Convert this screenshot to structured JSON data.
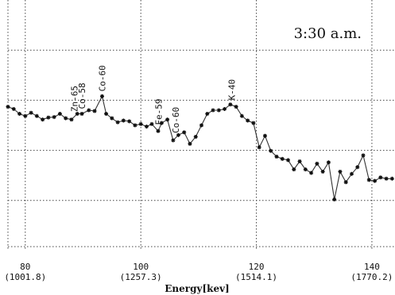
{
  "chart_data": {
    "type": "line",
    "time_label": "3:30 a.m.",
    "xlabel": "Energy[kev]",
    "ylabel": "",
    "xlim": [
      77,
      144
    ],
    "ylim": [
      0,
      100
    ],
    "grid": true,
    "x_ticks": [
      {
        "value": 80,
        "top": "80",
        "bottom": "(1001.8)"
      },
      {
        "value": 100,
        "top": "100",
        "bottom": "(1257.3)"
      },
      {
        "value": 120,
        "top": "120",
        "bottom": "(1514.1)"
      },
      {
        "value": 140,
        "top": "140",
        "bottom": "(1770.2)"
      }
    ],
    "peak_labels": [
      {
        "text": "Zn-65",
        "x": 88.5
      },
      {
        "text": "Co-58",
        "x": 89.8
      },
      {
        "text": "Co-60",
        "x": 93.3
      },
      {
        "text": "Fe-59",
        "x": 103.1
      },
      {
        "text": "Co-60",
        "x": 106.0
      },
      {
        "text": "K-40",
        "x": 115.7
      }
    ],
    "series": [
      {
        "x": [
          77.0,
          78.0,
          79.0,
          80.0,
          81.0,
          82.0,
          83.0,
          84.0,
          85.0,
          86.0,
          87.0,
          88.0,
          89.0,
          89.8,
          91.0,
          92.0,
          93.3,
          94.0,
          95.0,
          96.0,
          97.0,
          98.0,
          99.0,
          100.0,
          101.0,
          101.9,
          103.0,
          103.6,
          104.6,
          105.6,
          106.5,
          107.5,
          108.5,
          109.5,
          110.5,
          111.5,
          112.5,
          113.5,
          114.5,
          115.5,
          116.5,
          117.5,
          118.5,
          119.5,
          120.5,
          121.5,
          122.5,
          123.5,
          124.5,
          125.5,
          126.5,
          127.5,
          128.5,
          129.5,
          130.5,
          131.5,
          132.5,
          133.5,
          134.5,
          135.5,
          136.5,
          137.5,
          138.5,
          139.5,
          140.5,
          141.5,
          142.5,
          143.5
        ],
        "y": [
          57.4,
          56.5,
          54.6,
          53.7,
          55.0,
          53.7,
          52.3,
          53.1,
          53.3,
          54.6,
          52.8,
          52.3,
          54.6,
          54.6,
          56.0,
          55.7,
          61.6,
          54.6,
          52.8,
          51.2,
          51.9,
          51.6,
          50.0,
          50.5,
          49.5,
          50.5,
          47.7,
          50.9,
          52.3,
          44.0,
          46.1,
          47.2,
          42.6,
          45.4,
          50.0,
          54.6,
          56.0,
          56.0,
          56.5,
          58.3,
          57.4,
          53.7,
          51.9,
          50.9,
          41.2,
          45.8,
          39.8,
          37.5,
          36.6,
          36.1,
          32.4,
          35.6,
          32.4,
          31.0,
          34.7,
          31.5,
          35.2,
          20.4,
          31.5,
          27.3,
          30.6,
          33.3,
          38.0,
          28.2,
          27.8,
          29.2,
          28.7,
          28.7
        ]
      }
    ]
  }
}
